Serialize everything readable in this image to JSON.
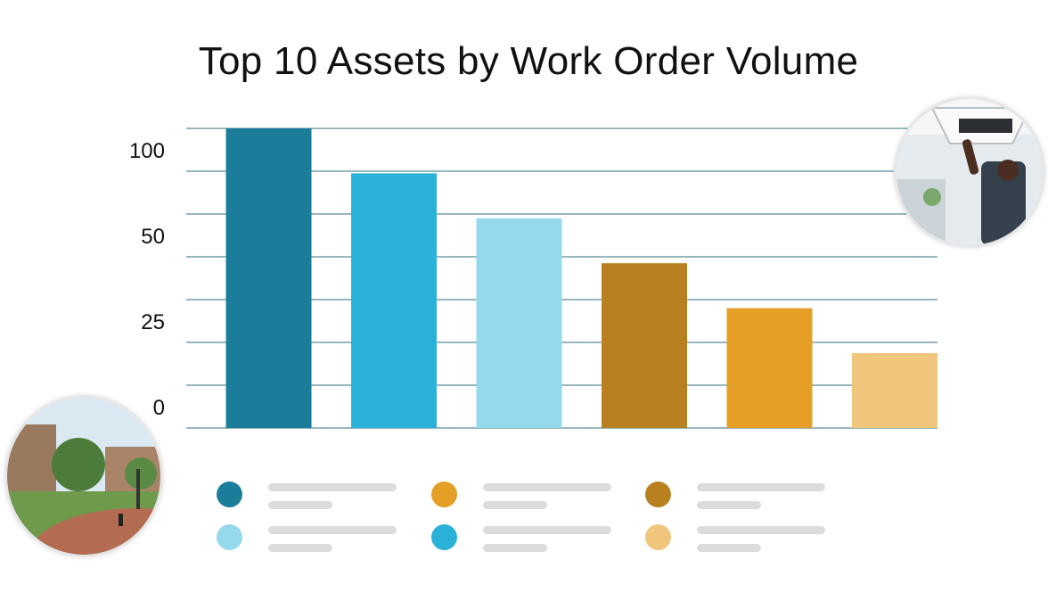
{
  "chart_data": {
    "type": "bar",
    "title": "Top 10 Assets by Work Order Volume",
    "xlabel": "",
    "ylabel": "",
    "y_tick_labels": [
      "100",
      "50",
      "25",
      "0"
    ],
    "values": [
      100,
      85,
      70,
      55,
      40,
      25
    ],
    "ylim": [
      0,
      100
    ],
    "grid": true,
    "colors": [
      "#1c7d9a",
      "#2ab2d9",
      "#95d9ec",
      "#b8801f",
      "#e59f27",
      "#f0c67d"
    ]
  },
  "legend": {
    "placement": "bottom",
    "colors": [
      "#1c7d9a",
      "#95d9ec",
      "#e59f27",
      "#2ab2d9",
      "#b8801f",
      "#f0c67d"
    ]
  },
  "images": {
    "top_right": "hvac-technician-photo",
    "bottom_left": "campus-courtyard-photo"
  }
}
